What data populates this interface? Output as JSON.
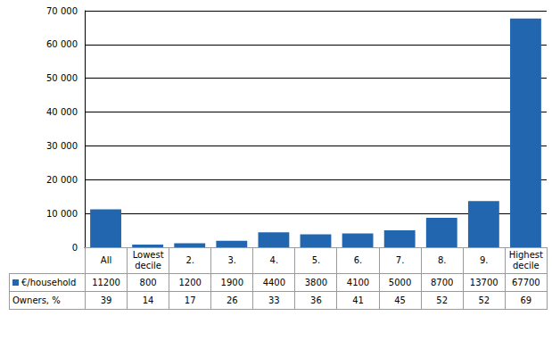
{
  "chart_data": {
    "type": "bar",
    "categories": [
      "All",
      "Lowest decile",
      "2.",
      "3.",
      "4.",
      "5.",
      "6.",
      "7.",
      "8.",
      "9.",
      "Highest decile"
    ],
    "series": [
      {
        "name": "€/household",
        "type": "bar",
        "color": "#2266b0",
        "values": [
          11200,
          800,
          1200,
          1900,
          4400,
          3800,
          4100,
          5000,
          8700,
          13700,
          67700
        ]
      },
      {
        "name": "Owners, %",
        "type": "table",
        "values": [
          39,
          14,
          17,
          26,
          33,
          36,
          41,
          45,
          52,
          52,
          69
        ]
      }
    ],
    "ylim": [
      0,
      70000
    ],
    "yticks": [
      0,
      {
        "value": 10000,
        "label": "10 000"
      },
      {
        "value": 20000,
        "label": "20 000"
      },
      {
        "value": 30000,
        "label": "30 000"
      },
      {
        "value": 40000,
        "label": "40 000"
      },
      {
        "value": 50000,
        "label": "50 000"
      },
      {
        "value": 60000,
        "label": "60 000"
      },
      {
        "value": 70000,
        "label": "70 000"
      }
    ],
    "grid": true
  }
}
